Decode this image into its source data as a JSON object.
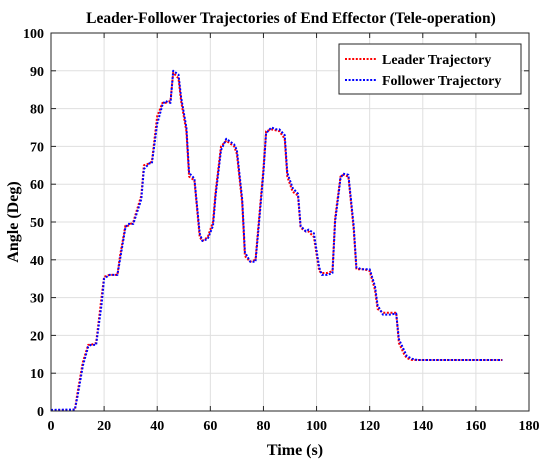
{
  "chart_data": {
    "type": "line",
    "title": "Leader-Follower Trajectories of End Effector (Tele-operation)",
    "xlabel": "Time (s)",
    "ylabel": "Angle (Deg)",
    "xlim": [
      0,
      180
    ],
    "ylim": [
      0,
      100
    ],
    "xticks": [
      "0",
      "20",
      "40",
      "60",
      "80",
      "100",
      "120",
      "140",
      "160",
      "180"
    ],
    "yticks": [
      "0",
      "10",
      "20",
      "30",
      "40",
      "50",
      "60",
      "70",
      "80",
      "90",
      "100"
    ],
    "grid": true,
    "legend_position": "top-right",
    "series": [
      {
        "name": "Leader Trajectory",
        "color": "#ff0000",
        "x": [
          0,
          9,
          10,
          12,
          14,
          15,
          17,
          19,
          20,
          22,
          25,
          26,
          28,
          29,
          31,
          34,
          35,
          37,
          38,
          40,
          42,
          43,
          45,
          46,
          48,
          49,
          51,
          52,
          54,
          56,
          57,
          59,
          61,
          62,
          64,
          66,
          67,
          69,
          70,
          72,
          73,
          75,
          77,
          78,
          80,
          81,
          83,
          85,
          86,
          88,
          89,
          91,
          93,
          94,
          96,
          97,
          99,
          101,
          102,
          104,
          106,
          107,
          109,
          110,
          112,
          114,
          115,
          117,
          118,
          120,
          122,
          123,
          125,
          126,
          128,
          130,
          131,
          133,
          134,
          136,
          138,
          139,
          141,
          170
        ],
        "y": [
          0.2,
          0.3,
          5,
          13,
          17.5,
          17.5,
          18,
          30,
          35.5,
          36,
          36,
          41,
          49,
          49,
          50,
          57,
          65,
          65.5,
          66,
          78,
          81.5,
          81.5,
          82,
          89.5,
          88,
          82,
          74,
          62,
          61,
          46,
          45,
          46,
          50,
          58,
          70,
          71.5,
          71,
          70,
          68,
          55,
          41,
          39.5,
          40,
          48,
          64,
          74,
          74.5,
          74.2,
          74,
          72,
          62,
          58,
          57,
          48.5,
          47.5,
          47.5,
          46,
          37,
          36.5,
          36.5,
          37,
          51,
          62,
          62.5,
          62,
          48,
          37.5,
          37.5,
          37.5,
          37,
          32,
          27,
          26,
          26,
          26,
          26,
          18,
          15,
          14,
          13.5,
          13.5,
          13.5,
          13.5,
          13.5
        ]
      },
      {
        "name": "Follower Trajectory",
        "color": "#0000ff",
        "x": [
          0,
          9,
          10,
          12,
          14,
          15,
          17,
          19,
          20,
          22,
          25,
          26,
          28,
          29,
          31,
          34,
          35,
          37,
          38,
          40,
          42,
          43,
          45,
          46,
          48,
          49,
          51,
          52,
          54,
          56,
          57,
          59,
          61,
          62,
          64,
          66,
          67,
          69,
          70,
          72,
          73,
          75,
          77,
          78,
          80,
          81,
          83,
          85,
          86,
          88,
          89,
          91,
          93,
          94,
          96,
          97,
          99,
          101,
          102,
          104,
          106,
          107,
          109,
          110,
          112,
          114,
          115,
          117,
          118,
          120,
          122,
          123,
          125,
          126,
          128,
          130,
          131,
          133,
          134,
          136,
          138,
          139,
          141,
          170
        ],
        "y": [
          0.3,
          0.4,
          4,
          12,
          17,
          17.5,
          17.5,
          28,
          35,
          36,
          36,
          40,
          48.5,
          49.5,
          49.5,
          56,
          64,
          65.5,
          65.5,
          76,
          81,
          82,
          81.5,
          90,
          89,
          83,
          75,
          63,
          61.5,
          47,
          45,
          45.5,
          49,
          57,
          69,
          72,
          71.5,
          70.5,
          69,
          56,
          42,
          39.5,
          39.5,
          47,
          63,
          73.5,
          75,
          74.5,
          74.5,
          73,
          63,
          59,
          57.5,
          49,
          47.5,
          48,
          47,
          38,
          36,
          36,
          36.5,
          50,
          61.5,
          62.8,
          62.5,
          49,
          38,
          37.5,
          37.5,
          37.5,
          33,
          28,
          25.5,
          25.5,
          25.5,
          25.8,
          19,
          16,
          14.5,
          13.8,
          13.5,
          13.5,
          13.5,
          13.5
        ]
      }
    ]
  }
}
